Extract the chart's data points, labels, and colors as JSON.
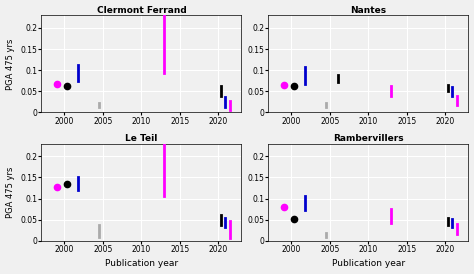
{
  "titles": [
    "Clermont Ferrand",
    "Nantes",
    "Le Teil",
    "Rambervillers"
  ],
  "xlabel": "Publication year",
  "ylabel": "PGA 475 yrs",
  "xlim": [
    1997,
    2023
  ],
  "ylim": [
    0,
    0.23
  ],
  "yticks": [
    0,
    0.05,
    0.1,
    0.15,
    0.2
  ],
  "xticks": [
    2000,
    2005,
    2010,
    2015,
    2020
  ],
  "background": "#f0f0f0",
  "subplots": [
    {
      "name": "Clermont Ferrand",
      "magenta_dot": [
        1999.0,
        0.068
      ],
      "black_dot": [
        2000.3,
        0.063
      ],
      "blue_bar": {
        "x": 2001.8,
        "ymin": 0.075,
        "ymax": 0.113
      },
      "gray_bar": {
        "x": 2004.5,
        "ymin": 0.013,
        "ymax": 0.023
      },
      "magenta_bar_2013": {
        "x": 2013.0,
        "ymin": 0.093,
        "ymax": 0.235
      },
      "black_bar_2021": {
        "x": 2020.3,
        "ymin": 0.038,
        "ymax": 0.062
      },
      "blue_bar_2021": {
        "x": 2020.9,
        "ymin": 0.013,
        "ymax": 0.037
      },
      "magenta_bar_2021": {
        "x": 2021.5,
        "ymin": 0.006,
        "ymax": 0.026
      }
    },
    {
      "name": "Nantes",
      "magenta_dot": [
        1999.0,
        0.064
      ],
      "black_dot": [
        2000.3,
        0.062
      ],
      "blue_bar": {
        "x": 2001.8,
        "ymin": 0.068,
        "ymax": 0.108
      },
      "gray_bar": {
        "x": 2004.5,
        "ymin": 0.013,
        "ymax": 0.023
      },
      "black_bar_2005": {
        "x": 2006.0,
        "ymin": 0.072,
        "ymax": 0.088
      },
      "magenta_bar_2013": {
        "x": 2013.0,
        "ymin": 0.038,
        "ymax": 0.062
      },
      "black_bar_2021": {
        "x": 2020.3,
        "ymin": 0.05,
        "ymax": 0.065
      },
      "blue_bar_2021": {
        "x": 2020.9,
        "ymin": 0.038,
        "ymax": 0.06
      },
      "magenta_bar_2021": {
        "x": 2021.5,
        "ymin": 0.018,
        "ymax": 0.038
      }
    },
    {
      "name": "Le Teil",
      "magenta_dot": [
        1999.0,
        0.128
      ],
      "black_dot": [
        2000.3,
        0.135
      ],
      "blue_bar": {
        "x": 2001.8,
        "ymin": 0.12,
        "ymax": 0.15
      },
      "gray_bar": {
        "x": 2004.5,
        "ymin": 0.008,
        "ymax": 0.038
      },
      "magenta_bar_2013": {
        "x": 2013.0,
        "ymin": 0.105,
        "ymax": 0.235
      },
      "black_bar_2021": {
        "x": 2020.3,
        "ymin": 0.038,
        "ymax": 0.06
      },
      "blue_bar_2021": {
        "x": 2020.9,
        "ymin": 0.033,
        "ymax": 0.055
      },
      "magenta_bar_2021": {
        "x": 2021.5,
        "ymin": 0.006,
        "ymax": 0.046
      }
    },
    {
      "name": "Rambervillers",
      "magenta_dot": [
        1999.0,
        0.08
      ],
      "black_dot": [
        2000.3,
        0.052
      ],
      "blue_bar": {
        "x": 2001.8,
        "ymin": 0.072,
        "ymax": 0.105
      },
      "gray_bar": {
        "x": 2004.5,
        "ymin": 0.008,
        "ymax": 0.018
      },
      "magenta_bar_2013": {
        "x": 2013.0,
        "ymin": 0.043,
        "ymax": 0.075
      },
      "black_bar_2021": {
        "x": 2020.3,
        "ymin": 0.038,
        "ymax": 0.055
      },
      "blue_bar_2021": {
        "x": 2020.9,
        "ymin": 0.033,
        "ymax": 0.052
      },
      "magenta_bar_2021": {
        "x": 2021.5,
        "ymin": 0.016,
        "ymax": 0.04
      }
    }
  ],
  "colors": {
    "magenta": "#FF00FF",
    "black": "#000000",
    "blue": "#0000CD",
    "gray": "#aaaaaa"
  }
}
